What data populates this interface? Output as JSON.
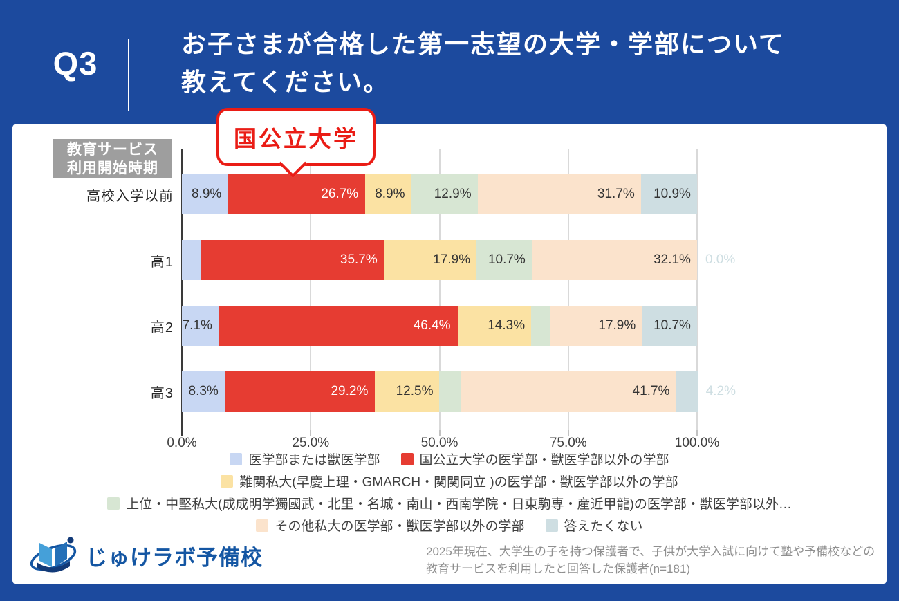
{
  "header": {
    "question_number": "Q3",
    "title_line1": "お子さまが合格した第一志望の大学・学部について",
    "title_line2": "教えてください。",
    "bg_color": "#1c4a9e"
  },
  "callout": {
    "text": "国公立大学",
    "color": "#ea1c15"
  },
  "axis_note": {
    "line1": "教育サービス",
    "line2": "利用開始時期",
    "bg_color": "#9e9e9e"
  },
  "chart_data": {
    "type": "bar",
    "variant": "horizontal-stacked",
    "title": "お子さまが合格した第一志望の大学・学部",
    "categories": [
      "高校入学以前",
      "高1",
      "高2",
      "高3"
    ],
    "series": [
      {
        "name": "医学部または獣医学部",
        "color": "#c8d7f3",
        "values": [
          8.9,
          3.6,
          7.1,
          8.3
        ]
      },
      {
        "name": "国公立大学の医学部・獣医学部以外の学部",
        "color": "#e63c32",
        "values": [
          26.7,
          35.7,
          46.4,
          29.2
        ]
      },
      {
        "name": "難関私大(早慶上理・GMARCH・関関同立 )の医学部・獣医学部以外の学部",
        "color": "#fbe2a3",
        "values": [
          8.9,
          17.9,
          14.3,
          12.5
        ]
      },
      {
        "name": "上位・中堅私大(成成明学獨國武・北里・名城・南山・西南学院・日東駒専・産近甲龍)の医学部・獣医学部以外…",
        "color": "#d7e6d3",
        "values": [
          12.9,
          10.7,
          3.6,
          4.2
        ]
      },
      {
        "name": "その他私大の医学部・獣医学部以外の学部",
        "color": "#fbe3cc",
        "values": [
          31.7,
          32.1,
          17.9,
          41.7
        ]
      },
      {
        "name": "答えたくない",
        "color": "#cedee2",
        "values": [
          10.9,
          0.0,
          10.7,
          4.2
        ]
      }
    ],
    "value_labels": [
      [
        "8.9%",
        "26.7%",
        "8.9%",
        "12.9%",
        "31.7%",
        "10.9%"
      ],
      [
        "3.6%",
        "35.7%",
        "17.9%",
        "10.7%",
        "32.1%",
        "0.0%"
      ],
      [
        "7.1%",
        "46.4%",
        "14.3%",
        "3.6%",
        "17.9%",
        "10.7%"
      ],
      [
        "8.3%",
        "29.2%",
        "12.5%",
        "4.2%",
        "41.7%",
        "4.2%"
      ]
    ],
    "label_styles": [
      [
        "in",
        "in-white",
        "in",
        "in",
        "in",
        "in"
      ],
      [
        "spill",
        "in-white",
        "in",
        "in",
        "in",
        "spill"
      ],
      [
        "in",
        "in-white",
        "in",
        "spill",
        "in",
        "in"
      ],
      [
        "in",
        "in-white",
        "in",
        "spill",
        "in",
        "spill"
      ]
    ],
    "x_ticks": [
      "0.0%",
      "25.0%",
      "50.0%",
      "75.0%",
      "100.0%"
    ],
    "x_tick_positions": [
      0,
      25,
      50,
      75,
      100
    ],
    "xlim": [
      0,
      100
    ],
    "grid": true,
    "legend_position": "bottom",
    "legend_rows": [
      [
        0,
        1
      ],
      [
        2
      ],
      [
        3
      ],
      [
        4,
        5
      ]
    ]
  },
  "footer": {
    "logo_text": "じゅけラボ予備校",
    "note_line1": "2025年現在、大学生の子を持つ保護者で、子供が大学入試に向けて塾や予備校などの",
    "note_line2": "教育サービスを利用したと回答した保護者(n=181)"
  }
}
